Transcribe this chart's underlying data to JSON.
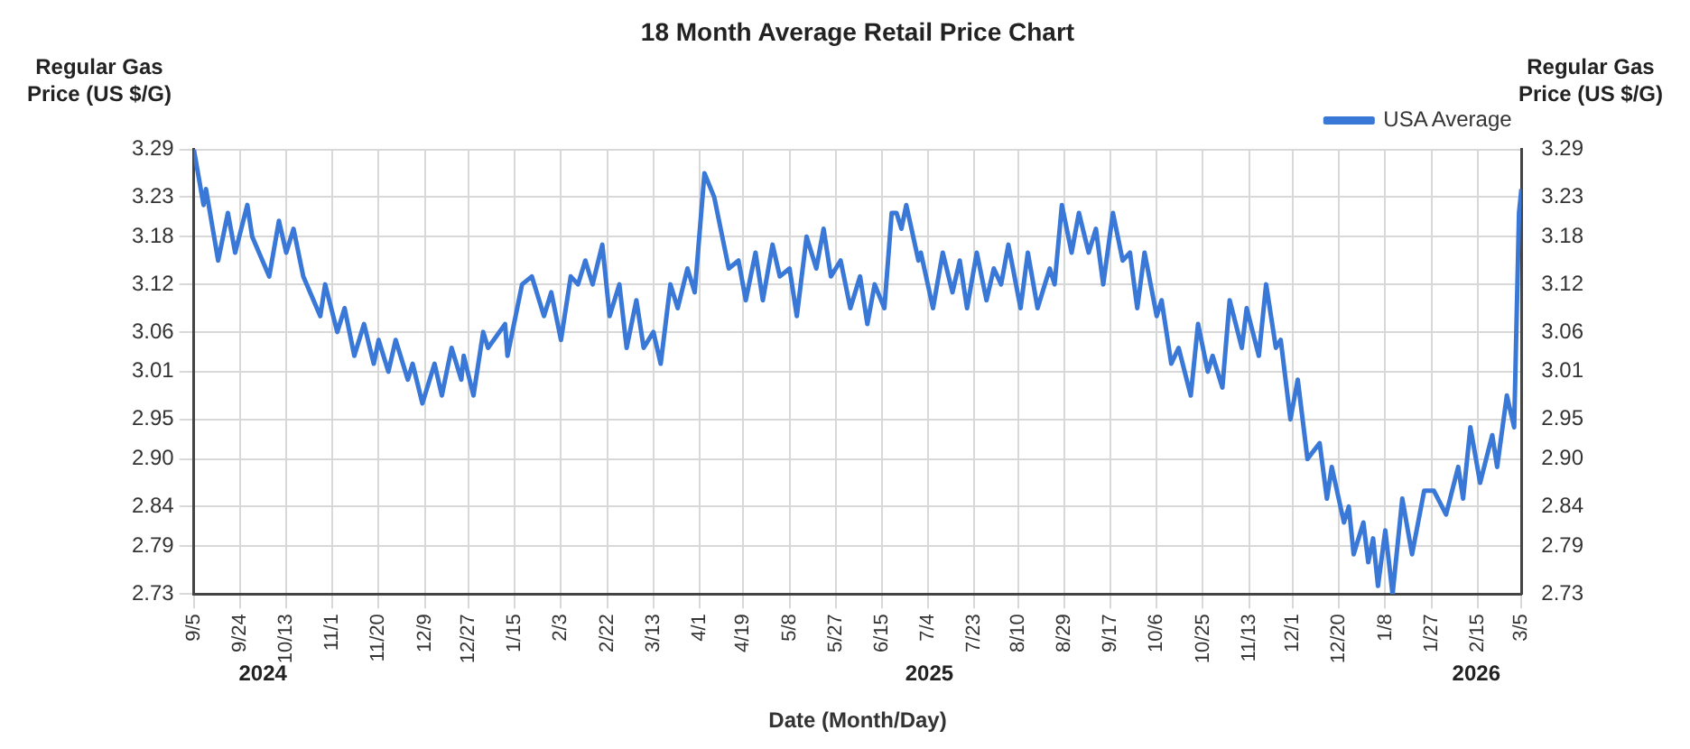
{
  "chart_data": {
    "type": "line",
    "title": "18 Month Average Retail Price Chart",
    "xlabel": "Date (Month/Day)",
    "ylabel": "Regular Gas Price (US $/G)",
    "y2label": "Regular Gas Price (US $/G)",
    "x": [
      "2024-09-05",
      "2024-09-09",
      "2024-09-10",
      "2024-09-15",
      "2024-09-19",
      "2024-09-22",
      "2024-09-27",
      "2024-09-29",
      "2024-10-06",
      "2024-10-10",
      "2024-10-13",
      "2024-10-16",
      "2024-10-20",
      "2024-10-27",
      "2024-10-29",
      "2024-11-03",
      "2024-11-06",
      "2024-11-10",
      "2024-11-14",
      "2024-11-18",
      "2024-11-20",
      "2024-11-24",
      "2024-11-27",
      "2024-12-02",
      "2024-12-04",
      "2024-12-08",
      "2024-12-13",
      "2024-12-16",
      "2024-12-20",
      "2024-12-24",
      "2024-12-25",
      "2024-12-29",
      "2025-01-02",
      "2025-01-04",
      "2025-01-11",
      "2025-01-12",
      "2025-01-18",
      "2025-01-22",
      "2025-01-27",
      "2025-01-30",
      "2025-02-03",
      "2025-02-07",
      "2025-02-10",
      "2025-02-13",
      "2025-02-16",
      "2025-02-20",
      "2025-02-23",
      "2025-02-27",
      "2025-03-02",
      "2025-03-06",
      "2025-03-09",
      "2025-03-13",
      "2025-03-16",
      "2025-03-20",
      "2025-03-23",
      "2025-03-27",
      "2025-03-30",
      "2025-04-03",
      "2025-04-07",
      "2025-04-13",
      "2025-04-17",
      "2025-04-20",
      "2025-04-24",
      "2025-04-27",
      "2025-05-01",
      "2025-05-04",
      "2025-05-08",
      "2025-05-11",
      "2025-05-15",
      "2025-05-19",
      "2025-05-22",
      "2025-05-25",
      "2025-05-29",
      "2025-06-02",
      "2025-06-06",
      "2025-06-09",
      "2025-06-12",
      "2025-06-16",
      "2025-06-19",
      "2025-06-21",
      "2025-06-23",
      "2025-06-25",
      "2025-06-30",
      "2025-07-01",
      "2025-07-06",
      "2025-07-10",
      "2025-07-14",
      "2025-07-17",
      "2025-07-20",
      "2025-07-24",
      "2025-07-28",
      "2025-07-31",
      "2025-08-03",
      "2025-08-06",
      "2025-08-11",
      "2025-08-14",
      "2025-08-18",
      "2025-08-23",
      "2025-08-25",
      "2025-08-28",
      "2025-09-01",
      "2025-09-04",
      "2025-09-08",
      "2025-09-11",
      "2025-09-14",
      "2025-09-18",
      "2025-09-22",
      "2025-09-25",
      "2025-09-28",
      "2025-10-01",
      "2025-10-06",
      "2025-10-08",
      "2025-10-12",
      "2025-10-15",
      "2025-10-20",
      "2025-10-23",
      "2025-10-27",
      "2025-10-29",
      "2025-11-02",
      "2025-11-05",
      "2025-11-10",
      "2025-11-12",
      "2025-11-17",
      "2025-11-20",
      "2025-11-24",
      "2025-11-26",
      "2025-11-30",
      "2025-12-03",
      "2025-12-07",
      "2025-12-12",
      "2025-12-15",
      "2025-12-17",
      "2025-12-22",
      "2025-12-24",
      "2025-12-26",
      "2025-12-30",
      "2026-01-01",
      "2026-01-03",
      "2026-01-05",
      "2026-01-08",
      "2026-01-11",
      "2026-01-15",
      "2026-01-19",
      "2026-01-24",
      "2026-01-28",
      "2026-02-02",
      "2026-02-07",
      "2026-02-09",
      "2026-02-12",
      "2026-02-16",
      "2026-02-21",
      "2026-02-23",
      "2026-02-27",
      "2026-03-02",
      "2026-03-04",
      "2026-03-05"
    ],
    "series": [
      {
        "name": "USA Average",
        "color": "#3a78d8",
        "values": [
          3.29,
          3.22,
          3.24,
          3.15,
          3.21,
          3.16,
          3.22,
          3.18,
          3.13,
          3.2,
          3.16,
          3.19,
          3.13,
          3.08,
          3.12,
          3.06,
          3.09,
          3.03,
          3.07,
          3.02,
          3.05,
          3.01,
          3.05,
          3.0,
          3.02,
          2.97,
          3.02,
          2.98,
          3.04,
          3.0,
          3.03,
          2.98,
          3.06,
          3.04,
          3.07,
          3.03,
          3.12,
          3.13,
          3.08,
          3.11,
          3.05,
          3.13,
          3.12,
          3.15,
          3.12,
          3.17,
          3.08,
          3.12,
          3.04,
          3.1,
          3.04,
          3.06,
          3.02,
          3.12,
          3.09,
          3.14,
          3.11,
          3.26,
          3.23,
          3.14,
          3.15,
          3.1,
          3.16,
          3.1,
          3.17,
          3.13,
          3.14,
          3.08,
          3.18,
          3.14,
          3.19,
          3.13,
          3.15,
          3.09,
          3.13,
          3.07,
          3.12,
          3.09,
          3.21,
          3.21,
          3.19,
          3.22,
          3.15,
          3.16,
          3.09,
          3.16,
          3.11,
          3.15,
          3.09,
          3.16,
          3.1,
          3.14,
          3.12,
          3.17,
          3.09,
          3.16,
          3.09,
          3.14,
          3.12,
          3.22,
          3.16,
          3.21,
          3.16,
          3.19,
          3.12,
          3.21,
          3.15,
          3.16,
          3.09,
          3.16,
          3.08,
          3.1,
          3.02,
          3.04,
          2.98,
          3.07,
          3.01,
          3.03,
          2.99,
          3.1,
          3.04,
          3.09,
          3.03,
          3.12,
          3.04,
          3.05,
          2.95,
          3.0,
          2.9,
          2.92,
          2.85,
          2.89,
          2.82,
          2.84,
          2.78,
          2.82,
          2.77,
          2.8,
          2.74,
          2.81,
          2.73,
          2.85,
          2.78,
          2.86,
          2.86,
          2.83,
          2.89,
          2.85,
          2.94,
          2.87,
          2.93,
          2.89,
          2.98,
          2.94,
          3.21,
          3.24
        ]
      }
    ],
    "xlim": [
      "2024-09-05",
      "2026-03-05"
    ],
    "xticks": [
      {
        "value": "2024-09-05",
        "label": "9/5"
      },
      {
        "value": "2024-09-24",
        "label": "9/24"
      },
      {
        "value": "2024-10-13",
        "label": "10/13"
      },
      {
        "value": "2024-11-01",
        "label": "11/1"
      },
      {
        "value": "2024-11-20",
        "label": "11/20"
      },
      {
        "value": "2024-12-09",
        "label": "12/9"
      },
      {
        "value": "2024-12-27",
        "label": "12/27"
      },
      {
        "value": "2025-01-15",
        "label": "1/15"
      },
      {
        "value": "2025-02-03",
        "label": "2/3"
      },
      {
        "value": "2025-02-22",
        "label": "2/22"
      },
      {
        "value": "2025-03-13",
        "label": "3/13"
      },
      {
        "value": "2025-04-01",
        "label": "4/1"
      },
      {
        "value": "2025-04-19",
        "label": "4/19"
      },
      {
        "value": "2025-05-08",
        "label": "5/8"
      },
      {
        "value": "2025-05-27",
        "label": "5/27"
      },
      {
        "value": "2025-06-15",
        "label": "6/15"
      },
      {
        "value": "2025-07-04",
        "label": "7/4"
      },
      {
        "value": "2025-07-23",
        "label": "7/23"
      },
      {
        "value": "2025-08-10",
        "label": "8/10"
      },
      {
        "value": "2025-08-29",
        "label": "8/29"
      },
      {
        "value": "2025-09-17",
        "label": "9/17"
      },
      {
        "value": "2025-10-06",
        "label": "10/6"
      },
      {
        "value": "2025-10-25",
        "label": "10/25"
      },
      {
        "value": "2025-11-13",
        "label": "11/13"
      },
      {
        "value": "2025-12-01",
        "label": "12/1"
      },
      {
        "value": "2025-12-20",
        "label": "12/20"
      },
      {
        "value": "2026-01-08",
        "label": "1/8"
      },
      {
        "value": "2026-01-27",
        "label": "1/27"
      },
      {
        "value": "2026-02-15",
        "label": "2/15"
      },
      {
        "value": "2026-03-05",
        "label": "3/5"
      }
    ],
    "ylim": [
      2.73,
      3.29
    ],
    "yticks": [
      2.73,
      2.79,
      2.84,
      {
        "value": 2.9,
        "label": "2.90"
      },
      2.95,
      3.01,
      3.06,
      3.12,
      3.18,
      3.23,
      3.29
    ],
    "y2lim": [
      2.73,
      3.29
    ],
    "y2ticks": [
      2.73,
      2.79,
      2.84,
      {
        "value": 2.9,
        "label": "2.90"
      },
      2.95,
      3.01,
      3.06,
      3.12,
      3.18,
      3.23,
      3.29
    ],
    "annotations": [
      "2024",
      "2025",
      "2026"
    ],
    "grid": true,
    "legend": "top right",
    "line_style": "solid"
  }
}
